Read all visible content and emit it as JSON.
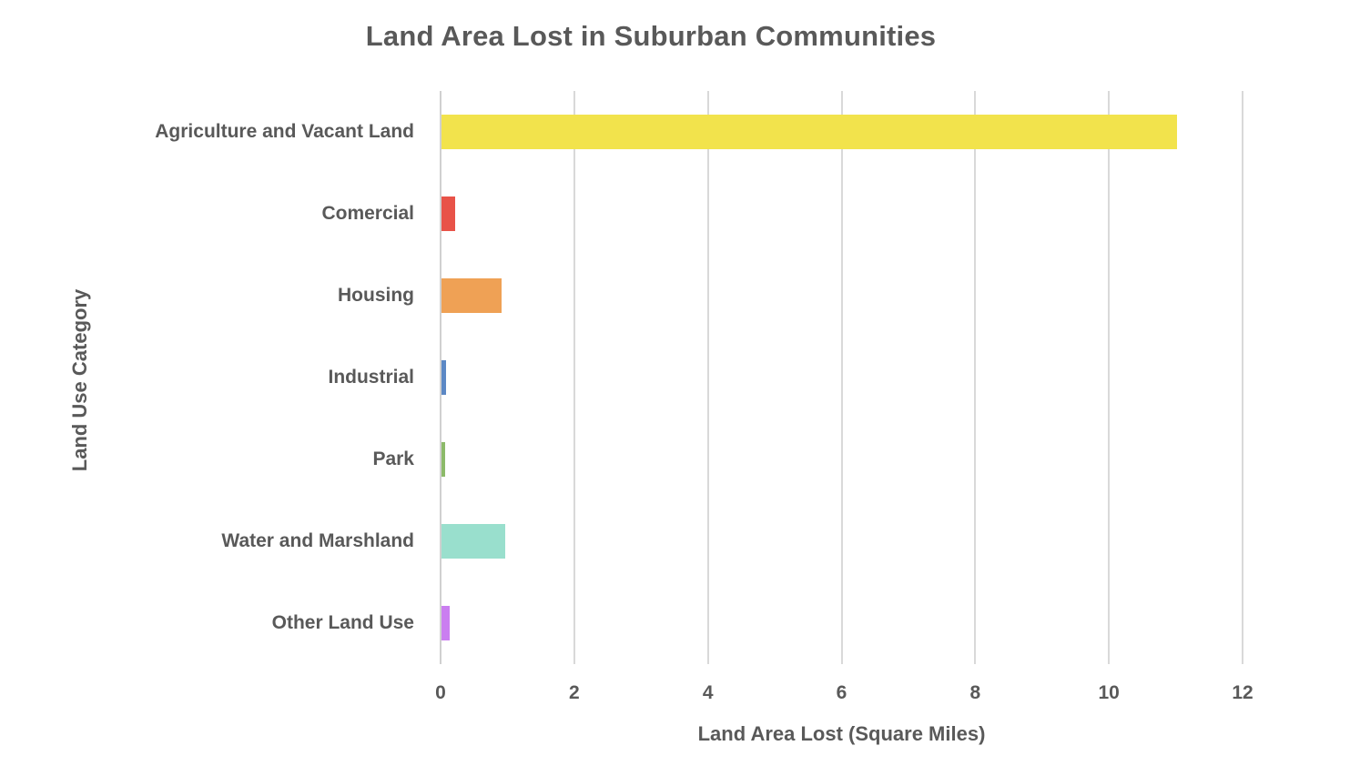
{
  "chart_data": {
    "type": "bar",
    "orientation": "horizontal",
    "title": "Land Area Lost in Suburban Communities",
    "xlabel": "Land Area Lost (Square Miles)",
    "ylabel": "Land Use Category",
    "categories": [
      "Agriculture and Vacant Land",
      "Comercial",
      "Housing",
      "Industrial",
      "Park",
      "Water and Marshland",
      "Other Land Use"
    ],
    "values": [
      11,
      0.2,
      0.9,
      0.07,
      0.05,
      0.95,
      0.12
    ],
    "bar_colors": [
      "#F2E34C",
      "#E85348",
      "#EFA155",
      "#5C88C5",
      "#8CBA69",
      "#99DFCD",
      "#CA7EF0"
    ],
    "xlim": [
      0,
      12
    ],
    "xticks": [
      0,
      2,
      4,
      6,
      8,
      10,
      12
    ],
    "grid": true,
    "legend": "none",
    "colors": {
      "gridline": "#d9d9d9",
      "text": "#595959",
      "background": "#ffffff"
    }
  }
}
